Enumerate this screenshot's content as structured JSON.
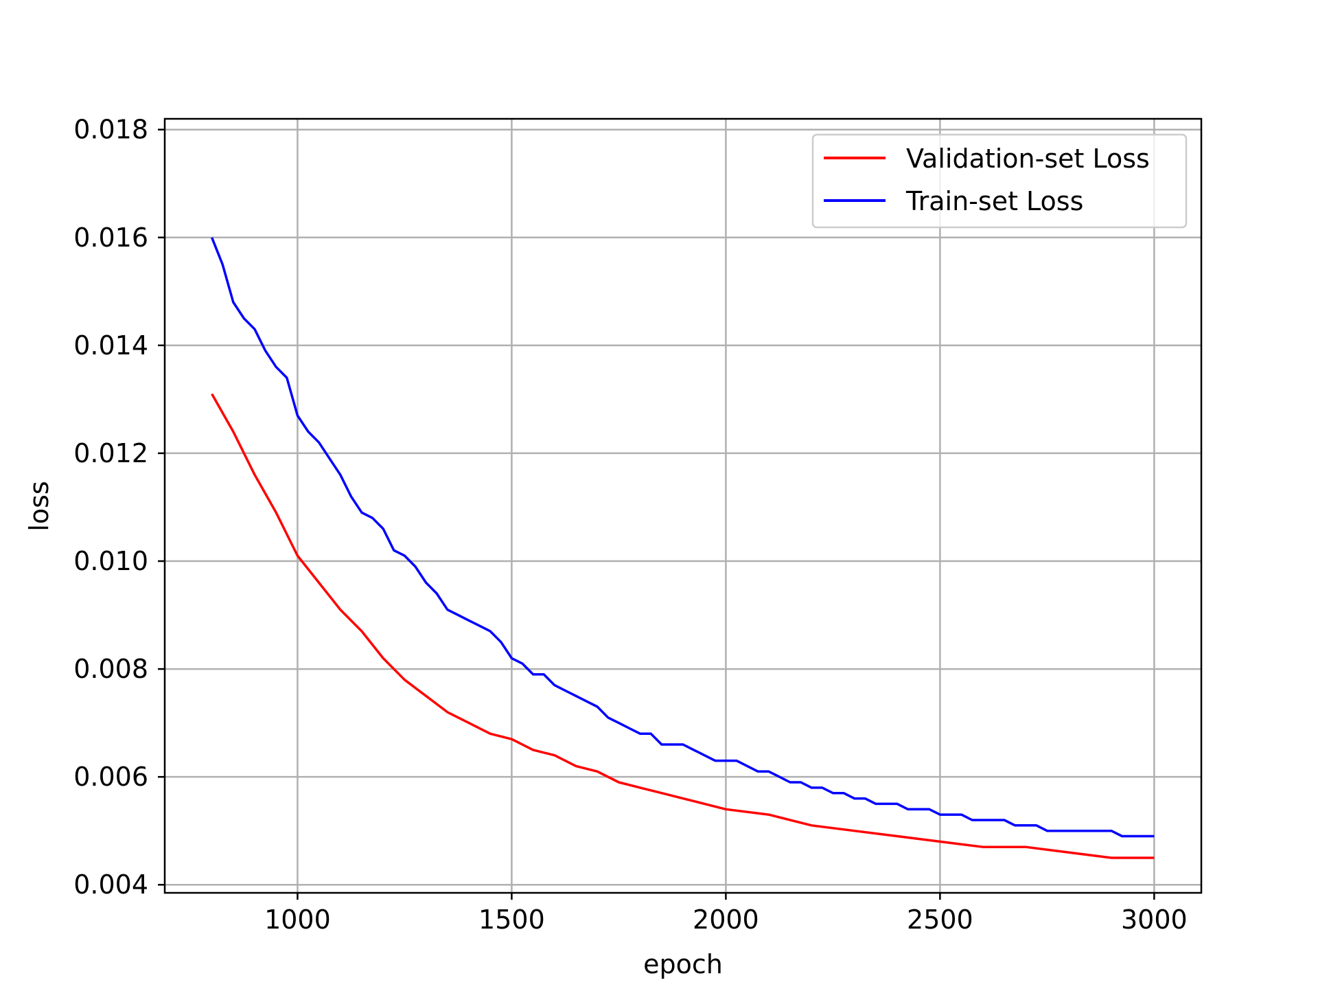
{
  "chart_data": {
    "type": "line",
    "xlabel": "epoch",
    "ylabel": "loss",
    "xlim": [
      690,
      3110
    ],
    "ylim": [
      0.00385,
      0.0182
    ],
    "xticks": [
      1000,
      1500,
      2000,
      2500,
      3000
    ],
    "yticks": [
      0.004,
      0.006,
      0.008,
      0.01,
      0.012,
      0.014,
      0.016,
      0.018
    ],
    "ytick_labels": [
      "0.004",
      "0.006",
      "0.008",
      "0.010",
      "0.012",
      "0.014",
      "0.016",
      "0.018"
    ],
    "xtick_labels": [
      "1000",
      "1500",
      "2000",
      "2500",
      "3000"
    ],
    "grid": true,
    "legend_position": "top-right",
    "series": [
      {
        "name": "Validation-set Loss",
        "color": "#ff0000",
        "x": [
          800,
          850,
          900,
          950,
          1000,
          1050,
          1100,
          1150,
          1200,
          1250,
          1300,
          1350,
          1400,
          1450,
          1500,
          1550,
          1600,
          1650,
          1700,
          1750,
          1800,
          1850,
          1900,
          1950,
          2000,
          2100,
          2200,
          2300,
          2400,
          2500,
          2600,
          2700,
          2800,
          2900,
          3000
        ],
        "values": [
          0.0131,
          0.0124,
          0.0116,
          0.0109,
          0.0101,
          0.0096,
          0.0091,
          0.0087,
          0.0082,
          0.0078,
          0.0075,
          0.0072,
          0.007,
          0.0068,
          0.0067,
          0.0065,
          0.0064,
          0.0062,
          0.0061,
          0.0059,
          0.0058,
          0.0057,
          0.0056,
          0.0055,
          0.0054,
          0.0053,
          0.0051,
          0.005,
          0.0049,
          0.0048,
          0.0047,
          0.0047,
          0.0046,
          0.0045,
          0.0045
        ]
      },
      {
        "name": "Train-set Loss",
        "color": "#0000ff",
        "x": [
          800,
          825,
          850,
          875,
          900,
          925,
          950,
          975,
          1000,
          1025,
          1050,
          1075,
          1100,
          1125,
          1150,
          1175,
          1200,
          1225,
          1250,
          1275,
          1300,
          1325,
          1350,
          1375,
          1400,
          1425,
          1450,
          1475,
          1500,
          1525,
          1550,
          1575,
          1600,
          1625,
          1650,
          1675,
          1700,
          1725,
          1750,
          1775,
          1800,
          1825,
          1850,
          1875,
          1900,
          1925,
          1950,
          1975,
          2000,
          2025,
          2050,
          2075,
          2100,
          2125,
          2150,
          2175,
          2200,
          2225,
          2250,
          2275,
          2300,
          2325,
          2350,
          2375,
          2400,
          2425,
          2450,
          2475,
          2500,
          2525,
          2550,
          2575,
          2600,
          2625,
          2650,
          2675,
          2700,
          2725,
          2750,
          2775,
          2800,
          2825,
          2850,
          2875,
          2900,
          2925,
          2950,
          2975,
          3000
        ],
        "values": [
          0.016,
          0.0155,
          0.0148,
          0.0145,
          0.0143,
          0.0139,
          0.0136,
          0.0134,
          0.0127,
          0.0124,
          0.0122,
          0.0119,
          0.0116,
          0.0112,
          0.0109,
          0.0108,
          0.0106,
          0.0102,
          0.0101,
          0.0099,
          0.0096,
          0.0094,
          0.0091,
          0.009,
          0.0089,
          0.0088,
          0.0087,
          0.0085,
          0.0082,
          0.0081,
          0.0079,
          0.0079,
          0.0077,
          0.0076,
          0.0075,
          0.0074,
          0.0073,
          0.0071,
          0.007,
          0.0069,
          0.0068,
          0.0068,
          0.0066,
          0.0066,
          0.0066,
          0.0065,
          0.0064,
          0.0063,
          0.0063,
          0.0063,
          0.0062,
          0.0061,
          0.0061,
          0.006,
          0.0059,
          0.0059,
          0.0058,
          0.0058,
          0.0057,
          0.0057,
          0.0056,
          0.0056,
          0.0055,
          0.0055,
          0.0055,
          0.0054,
          0.0054,
          0.0054,
          0.0053,
          0.0053,
          0.0053,
          0.0052,
          0.0052,
          0.0052,
          0.0052,
          0.0051,
          0.0051,
          0.0051,
          0.005,
          0.005,
          0.005,
          0.005,
          0.005,
          0.005,
          0.005,
          0.0049,
          0.0049,
          0.0049,
          0.0049
        ]
      }
    ]
  }
}
